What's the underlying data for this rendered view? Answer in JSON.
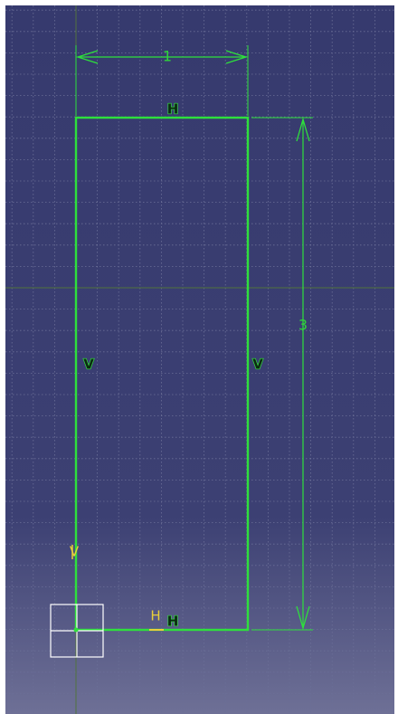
{
  "colors": {
    "background_top": "#363a6e",
    "background_bottom": "#6e7096",
    "grid": "#6b6f97",
    "axis": "#51733e",
    "geometry": "#2ee03c",
    "constraint_fill": "#0b2a12",
    "snap_hint": "#e8d03a",
    "origin_marker": "#ffffff"
  },
  "sketch": {
    "dimensions": {
      "width": {
        "value": "1"
      },
      "height": {
        "value": "3"
      }
    },
    "constraints": {
      "top_edge": "H",
      "left_edge": "V",
      "right_edge": "V",
      "bottom_edge": "H"
    },
    "cursor_hints": {
      "vertical": "V",
      "horizontal": "H"
    }
  }
}
